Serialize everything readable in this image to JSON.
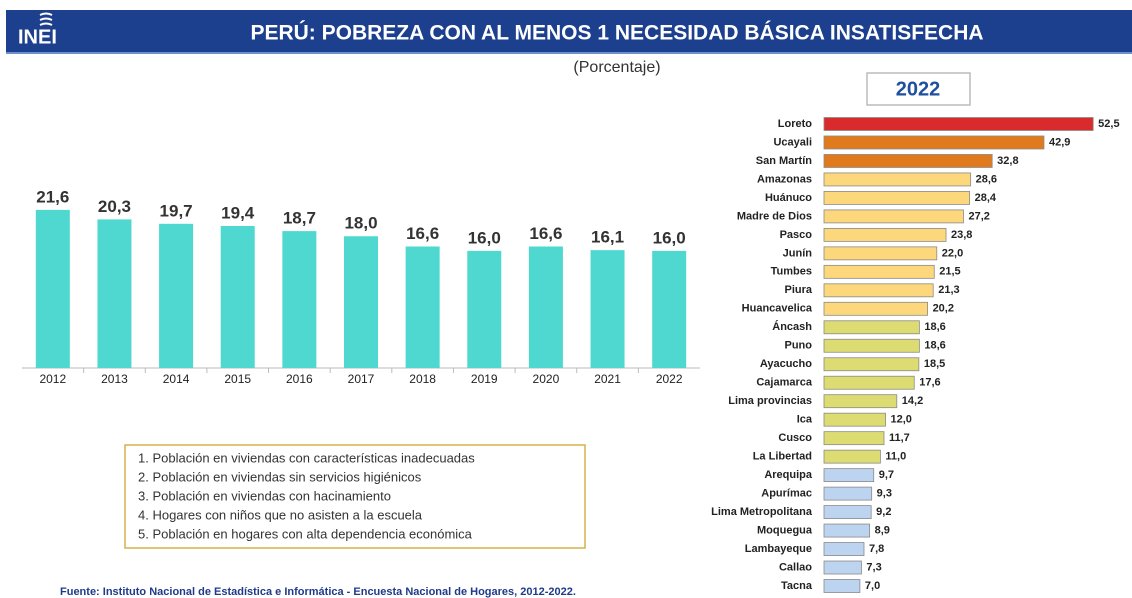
{
  "header": {
    "logo": "INEI",
    "title": "PERÚ: POBREZA CON AL MENOS 1 NECESIDAD BÁSICA INSATISFECHA",
    "subtitle": "(Porcentaje)"
  },
  "chart_data": [
    {
      "type": "bar",
      "categories": [
        "2012",
        "2013",
        "2014",
        "2015",
        "2016",
        "2017",
        "2018",
        "2019",
        "2020",
        "2021",
        "2022"
      ],
      "values": [
        21.6,
        20.3,
        19.7,
        19.4,
        18.7,
        18.0,
        16.6,
        16.0,
        16.6,
        16.1,
        16.0
      ],
      "value_labels": [
        "21,6",
        "20,3",
        "19,7",
        "19,4",
        "18,7",
        "18,0",
        "16,6",
        "16,0",
        "16,6",
        "16,1",
        "16,0"
      ],
      "color": "#4fd8d0",
      "ylim": [
        0,
        25
      ]
    },
    {
      "type": "barh",
      "title": "2022",
      "categories": [
        "Loreto",
        "Ucayali",
        "San Martín",
        "Amazonas",
        "Huánuco",
        "Madre de Dios",
        "Pasco",
        "Junín",
        "Tumbes",
        "Piura",
        "Huancavelica",
        "Áncash",
        "Puno",
        "Ayacucho",
        "Cajamarca",
        "Lima provincias",
        "Ica",
        "Cusco",
        "La Libertad",
        "Arequipa",
        "Apurímac",
        "Lima Metropolitana",
        "Moquegua",
        "Lambayeque",
        "Callao",
        "Tacna"
      ],
      "values": [
        52.5,
        42.9,
        32.8,
        28.6,
        28.4,
        27.2,
        23.8,
        22.0,
        21.5,
        21.3,
        20.2,
        18.6,
        18.6,
        18.5,
        17.6,
        14.2,
        12.0,
        11.7,
        11.0,
        9.7,
        9.3,
        9.2,
        8.9,
        7.8,
        7.3,
        7.0
      ],
      "value_labels": [
        "52,5",
        "42,9",
        "32,8",
        "28,6",
        "28,4",
        "27,2",
        "23,8",
        "22,0",
        "21,5",
        "21,3",
        "20,2",
        "18,6",
        "18,6",
        "18,5",
        "17,6",
        "14,2",
        "12,0",
        "11,7",
        "11,0",
        "9,7",
        "9,3",
        "9,2",
        "8,9",
        "7,8",
        "7,3",
        "7,0"
      ],
      "colors": [
        "#d92b2b",
        "#e07a1c",
        "#e07a1c",
        "#fdd77c",
        "#fdd77c",
        "#fdd77c",
        "#fdd77c",
        "#fdd77c",
        "#fdd77c",
        "#fdd77c",
        "#fdd77c",
        "#dcdc72",
        "#dcdc72",
        "#dcdc72",
        "#dcdc72",
        "#dcdc72",
        "#dcdc72",
        "#dcdc72",
        "#dcdc72",
        "#bcd4ef",
        "#bcd4ef",
        "#bcd4ef",
        "#bcd4ef",
        "#bcd4ef",
        "#bcd4ef",
        "#bcd4ef"
      ],
      "xlim": [
        0,
        55
      ]
    }
  ],
  "notes": [
    "1. Población en viviendas con características inadecuadas",
    "2. Población en viviendas sin servicios higiénicos",
    "3. Población en viviendas con hacinamiento",
    "4. Hogares con niños que no asisten a la escuela",
    "5. Población en hogares con alta dependencia económica"
  ],
  "source": "Fuente: Instituto Nacional de Estadística e Informática - Encuesta Nacional de Hogares, 2012-2022."
}
